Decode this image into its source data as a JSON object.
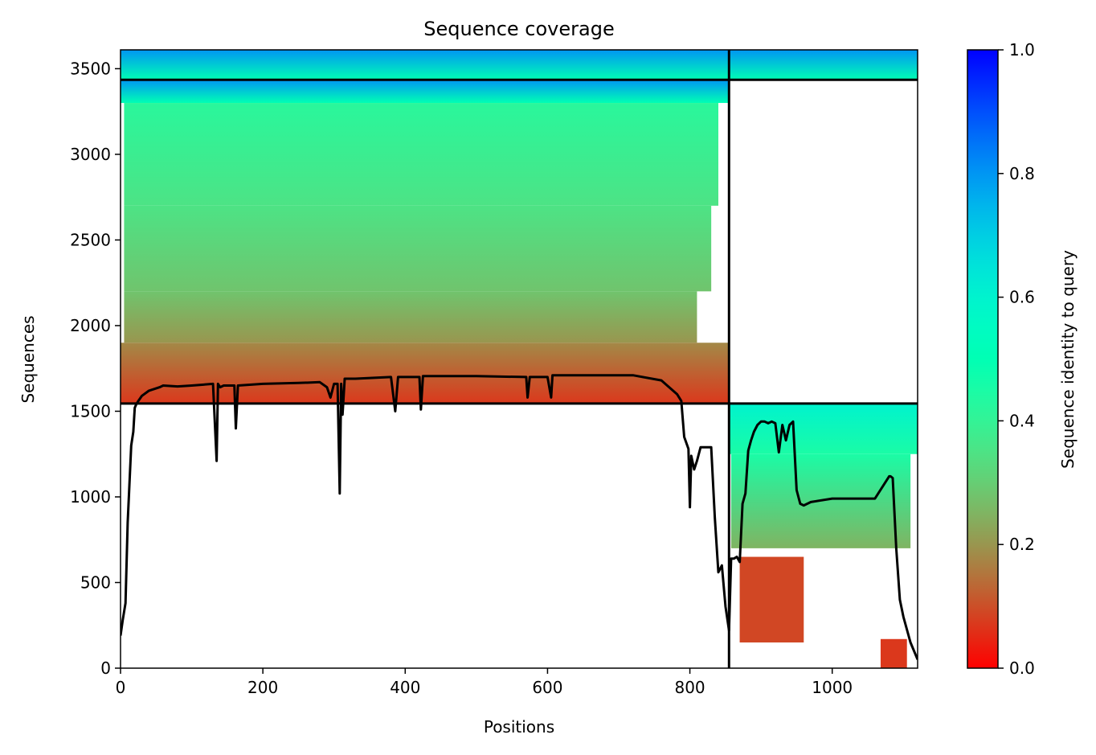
{
  "chart_data": {
    "type": "heatmap",
    "title": "Sequence coverage",
    "xlabel": "Positions",
    "ylabel": "Sequences",
    "xlim": [
      0,
      1120
    ],
    "ylim": [
      0,
      3610
    ],
    "xticks": [
      0,
      200,
      400,
      600,
      800,
      1000
    ],
    "yticks": [
      0,
      500,
      1000,
      1500,
      2000,
      2500,
      3000,
      3500
    ],
    "grid": false,
    "colormap": "rainbow_r",
    "colorbar": {
      "label": "Sequence identity to query",
      "range": [
        0,
        1
      ],
      "ticks": [
        0.0,
        0.2,
        0.4,
        0.6,
        0.8,
        1.0
      ],
      "tick_labels": [
        "0.0",
        "0.2",
        "0.4",
        "0.6",
        "0.8",
        "1.0"
      ]
    },
    "chain_boundaries": {
      "x_divider": 855,
      "y_dividers": [
        1545,
        3435
      ]
    },
    "coverage_blocks": [
      {
        "x0": 0,
        "x1": 1120,
        "y0": 3435,
        "y1": 3610,
        "identity_bottom": 0.5,
        "identity_top": 0.8
      },
      {
        "x0": 0,
        "x1": 855,
        "y0": 3300,
        "y1": 3435,
        "identity_bottom": 0.5,
        "identity_top": 0.8
      },
      {
        "x0": 5,
        "x1": 840,
        "y0": 2700,
        "y1": 3300,
        "identity_bottom": 0.35,
        "identity_top": 0.42
      },
      {
        "x0": 5,
        "x1": 830,
        "y0": 2200,
        "y1": 2700,
        "identity_bottom": 0.28,
        "identity_top": 0.35
      },
      {
        "x0": 5,
        "x1": 810,
        "y0": 1900,
        "y1": 2200,
        "identity_bottom": 0.2,
        "identity_top": 0.28
      },
      {
        "x0": 0,
        "x1": 855,
        "y0": 1545,
        "y1": 1900,
        "identity_bottom": 0.07,
        "identity_top": 0.18
      },
      {
        "x0": 855,
        "x1": 1120,
        "y0": 1250,
        "y1": 1545,
        "identity_bottom": 0.45,
        "identity_top": 0.6
      },
      {
        "x0": 858,
        "x1": 1110,
        "y0": 700,
        "y1": 1250,
        "identity_bottom": 0.25,
        "identity_top": 0.45
      },
      {
        "x0": 870,
        "x1": 960,
        "y0": 150,
        "y1": 650,
        "identity_bottom": 0.09,
        "identity_top": 0.09
      },
      {
        "x0": 1068,
        "x1": 1105,
        "y0": 0,
        "y1": 170,
        "identity_bottom": 0.07,
        "identity_top": 0.07
      }
    ],
    "coverage_line": {
      "name": "",
      "x": [
        0,
        3,
        7,
        10,
        15,
        18,
        20,
        22,
        25,
        30,
        40,
        55,
        60,
        80,
        100,
        130,
        135,
        137,
        140,
        145,
        160,
        162,
        165,
        200,
        250,
        280,
        290,
        295,
        300,
        305,
        308,
        310,
        312,
        315,
        320,
        330,
        380,
        386,
        390,
        420,
        422,
        425,
        500,
        570,
        572,
        575,
        600,
        605,
        607,
        610,
        680,
        720,
        760,
        782,
        788,
        792,
        798,
        800,
        802,
        806,
        810,
        815,
        830,
        835,
        840,
        845,
        850,
        855,
        858,
        862,
        866,
        870,
        874,
        878,
        882,
        886,
        890,
        895,
        900,
        905,
        910,
        915,
        920,
        925,
        930,
        935,
        940,
        945,
        950,
        955,
        960,
        970,
        1000,
        1030,
        1060,
        1080,
        1082,
        1085,
        1090,
        1095,
        1100,
        1110,
        1120
      ],
      "y": [
        190,
        280,
        380,
        850,
        1300,
        1380,
        1520,
        1540,
        1560,
        1590,
        1620,
        1640,
        1650,
        1645,
        1650,
        1660,
        1210,
        1660,
        1640,
        1650,
        1650,
        1400,
        1650,
        1660,
        1665,
        1670,
        1640,
        1580,
        1660,
        1660,
        1020,
        1660,
        1480,
        1690,
        1690,
        1690,
        1700,
        1500,
        1700,
        1700,
        1510,
        1705,
        1705,
        1700,
        1580,
        1700,
        1700,
        1580,
        1710,
        1710,
        1710,
        1710,
        1680,
        1600,
        1560,
        1350,
        1280,
        940,
        1240,
        1160,
        1210,
        1290,
        1290,
        880,
        560,
        600,
        360,
        220,
        640,
        640,
        650,
        620,
        960,
        1020,
        1270,
        1330,
        1380,
        1420,
        1440,
        1440,
        1430,
        1440,
        1430,
        1260,
        1420,
        1330,
        1420,
        1440,
        1040,
        960,
        950,
        970,
        990,
        990,
        990,
        1120,
        1120,
        1110,
        700,
        400,
        300,
        150,
        50
      ]
    }
  }
}
